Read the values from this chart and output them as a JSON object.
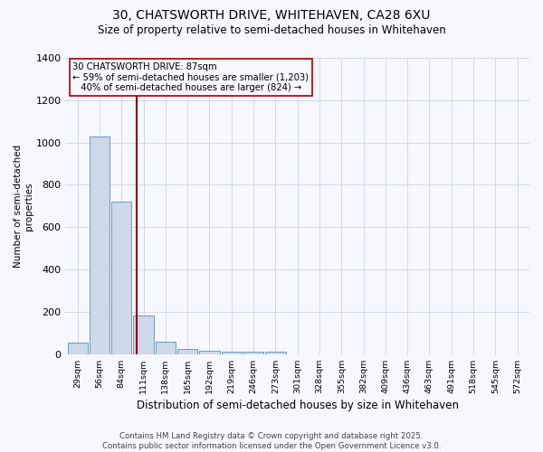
{
  "title1": "30, CHATSWORTH DRIVE, WHITEHAVEN, CA28 6XU",
  "title2": "Size of property relative to semi-detached houses in Whitehaven",
  "xlabel": "Distribution of semi-detached houses by size in Whitehaven",
  "ylabel": "Number of semi-detached\nproperties",
  "bin_labels": [
    "29sqm",
    "56sqm",
    "84sqm",
    "111sqm",
    "138sqm",
    "165sqm",
    "192sqm",
    "219sqm",
    "246sqm",
    "273sqm",
    "301sqm",
    "328sqm",
    "355sqm",
    "382sqm",
    "409sqm",
    "436sqm",
    "463sqm",
    "491sqm",
    "518sqm",
    "545sqm",
    "572sqm"
  ],
  "bar_values": [
    55,
    1030,
    720,
    185,
    60,
    25,
    15,
    10,
    10,
    10,
    0,
    0,
    0,
    0,
    0,
    0,
    0,
    0,
    0,
    0,
    0
  ],
  "bar_color": "#cdd9e8",
  "bar_edge_color": "#6a9ac4",
  "red_line_bin": 2.68,
  "annotation_line1": "30 CHATSWORTH DRIVE: 87sqm",
  "annotation_line2": "← 59% of semi-detached houses are smaller (1,203)",
  "annotation_line3": "   40% of semi-detached houses are larger (824) →",
  "ylim": [
    0,
    1400
  ],
  "yticks": [
    0,
    200,
    400,
    600,
    800,
    1000,
    1200,
    1400
  ],
  "footer": "Contains HM Land Registry data © Crown copyright and database right 2025.\nContains public sector information licensed under the Open Government Licence v3.0.",
  "bg_color": "#f7f7ff",
  "grid_color": "#d0d8ea"
}
